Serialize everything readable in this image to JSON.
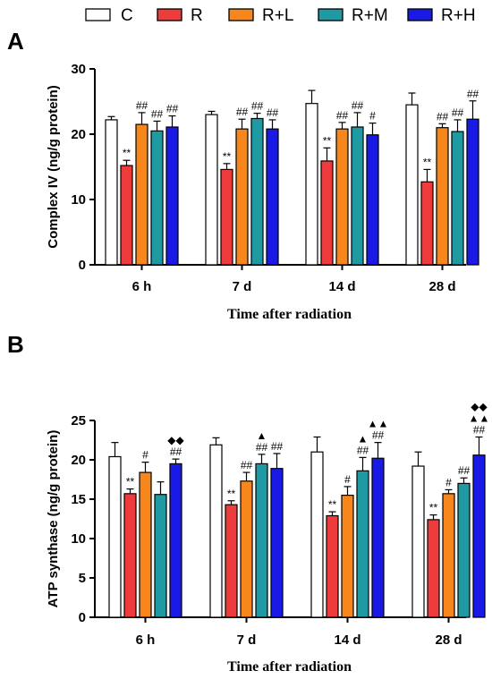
{
  "legend": {
    "items": [
      {
        "label": "C",
        "color": "#ffffff"
      },
      {
        "label": "R",
        "color": "#ee3b3b"
      },
      {
        "label": "R+L",
        "color": "#f7861c"
      },
      {
        "label": "R+M",
        "color": "#1f9aa3"
      },
      {
        "label": "R+H",
        "color": "#1a1ae6"
      }
    ]
  },
  "chart_data": [
    {
      "type": "bar",
      "panel": "A",
      "ylabel": "Complex IV (ng/g protein)",
      "xlabel": "Time after radiation",
      "categories": [
        "6 h",
        "7 d",
        "14 d",
        "28 d"
      ],
      "ylim": [
        0,
        30
      ],
      "yticks": [
        "0",
        "10",
        "20",
        "30"
      ],
      "series": [
        {
          "name": "C",
          "values": [
            22.2,
            23.0,
            24.7,
            24.5
          ],
          "errors": [
            0.5,
            0.5,
            2.0,
            1.8
          ],
          "labels": [
            "",
            "",
            "",
            ""
          ]
        },
        {
          "name": "R",
          "values": [
            15.2,
            14.6,
            15.9,
            12.7
          ],
          "errors": [
            0.8,
            0.9,
            2.0,
            1.9
          ],
          "labels": [
            "**",
            "**",
            "**",
            "**"
          ]
        },
        {
          "name": "R+L",
          "values": [
            21.5,
            20.8,
            20.8,
            21.0
          ],
          "errors": [
            1.8,
            1.5,
            1.0,
            0.6
          ],
          "labels": [
            "##",
            "##",
            "##",
            "##"
          ]
        },
        {
          "name": "R+M",
          "values": [
            20.5,
            22.4,
            21.1,
            20.4
          ],
          "errors": [
            1.5,
            0.8,
            2.2,
            1.8
          ],
          "labels": [
            "##",
            "##",
            "##",
            "##"
          ]
        },
        {
          "name": "R+H",
          "values": [
            21.1,
            20.8,
            19.9,
            22.3
          ],
          "errors": [
            1.7,
            1.4,
            1.8,
            2.8
          ],
          "labels": [
            "##",
            "##",
            "#",
            "##"
          ]
        }
      ]
    },
    {
      "type": "bar",
      "panel": "B",
      "ylabel": "ATP synthase (ng/g protein)",
      "xlabel": "Time after radiation",
      "categories": [
        "6 h",
        "7 d",
        "14 d",
        "28 d"
      ],
      "ylim": [
        0,
        25
      ],
      "yticks": [
        "0",
        "5",
        "10",
        "15",
        "20",
        "25"
      ],
      "series": [
        {
          "name": "C",
          "values": [
            20.4,
            21.9,
            21.0,
            19.2
          ],
          "errors": [
            1.8,
            0.9,
            1.9,
            1.8
          ],
          "labels": [
            "",
            "",
            "",
            ""
          ]
        },
        {
          "name": "R",
          "values": [
            15.7,
            14.3,
            12.9,
            12.4
          ],
          "errors": [
            0.6,
            0.5,
            0.5,
            0.6
          ],
          "labels": [
            "**",
            "**",
            "**",
            "**"
          ]
        },
        {
          "name": "R+L",
          "values": [
            18.4,
            17.3,
            15.5,
            15.7
          ],
          "errors": [
            1.3,
            1.1,
            1.1,
            0.5
          ],
          "labels": [
            "#",
            "##",
            "#",
            "#"
          ]
        },
        {
          "name": "R+M",
          "values": [
            15.6,
            19.5,
            18.6,
            17.0
          ],
          "errors": [
            1.6,
            1.2,
            1.7,
            0.7
          ],
          "labels": [
            "",
            "▲ ##",
            "▲ ##",
            "##"
          ]
        },
        {
          "name": "R+H",
          "values": [
            19.5,
            18.9,
            20.2,
            20.6
          ],
          "errors": [
            0.6,
            1.9,
            2.0,
            2.3
          ],
          "labels": [
            "◆◆ ##",
            "##",
            "▲▲ ##",
            "◆◆ ▲▲ ##"
          ]
        }
      ]
    }
  ]
}
